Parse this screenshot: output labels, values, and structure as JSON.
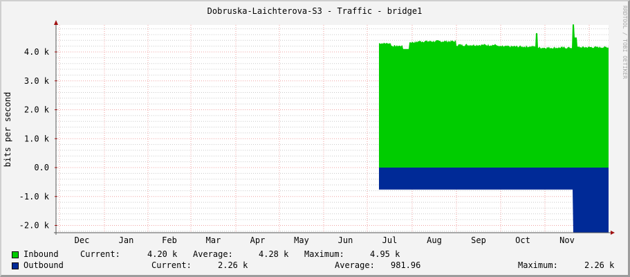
{
  "chart_data": {
    "type": "area",
    "title": "Dobruska-Laichterova-S3 - Traffic - bridge1",
    "ylabel": "bits per second",
    "xlabel": "",
    "watermark": "RRDTOOL / TOBI OETIKER",
    "ylim": [
      -2200,
      4950
    ],
    "yticks": [
      {
        "value": 4000,
        "label": "4.0 k"
      },
      {
        "value": 3000,
        "label": "3.0 k"
      },
      {
        "value": 2000,
        "label": "2.0 k"
      },
      {
        "value": 1000,
        "label": "1.0 k"
      },
      {
        "value": 0,
        "label": "0.0"
      },
      {
        "value": -1000,
        "label": "-1.0 k"
      },
      {
        "value": -2000,
        "label": "-2.0 k"
      }
    ],
    "categories": [
      "Dec",
      "Jan",
      "Feb",
      "Mar",
      "Apr",
      "May",
      "Jun",
      "Jul",
      "Aug",
      "Sep",
      "Oct",
      "Nov"
    ],
    "grid": true,
    "legend_position": "bottom",
    "series": [
      {
        "name": "Inbound",
        "color": "#00cc00",
        "direction": "positive",
        "data_start_month": "Jul",
        "approx_level": 4200,
        "spikes": [
          {
            "month": "Oct",
            "value": 4650
          },
          {
            "month": "Nov",
            "value": 4950
          }
        ],
        "current": "4.20 k",
        "average": "4.28 k",
        "maximum": "4.95 k"
      },
      {
        "name": "Outbound",
        "color": "#002a97",
        "direction": "negative",
        "data_start_month": "Jul",
        "approx_level": -760,
        "step_month": "Nov",
        "step_level": -2260,
        "current": "2.26 k",
        "average": "981.96",
        "maximum": "2.26 k"
      }
    ]
  },
  "legend": {
    "inbound": {
      "label": "Inbound",
      "current_label": "Current:",
      "current": "4.20 k",
      "average_label": "Average:",
      "average": "4.28 k",
      "maximum_label": "Maximum:",
      "maximum": "4.95 k"
    },
    "outbound": {
      "label": "Outbound",
      "current_label": "Current:",
      "current": "2.26 k",
      "average_label": "Average:",
      "average": "981.96",
      "maximum_label": "Maximum:",
      "maximum": "2.26 k"
    }
  }
}
